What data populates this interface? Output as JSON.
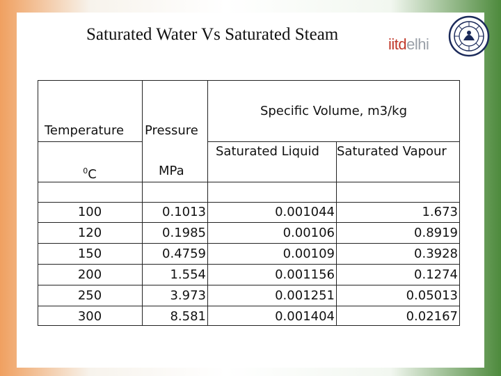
{
  "slide": {
    "title": "Saturated Water Vs Saturated Steam",
    "logo": {
      "part1": "iitd",
      "part2": "elhi"
    }
  },
  "table": {
    "header": {
      "temperature": "Temperature",
      "pressure": "Pressure",
      "specific_volume": "Specific Volume, m3/kg",
      "sat_liquid": "Saturated Liquid",
      "sat_vapour": "Saturated Vapour",
      "temp_unit_sup": "0",
      "temp_unit": "C",
      "pressure_unit": "MPa"
    },
    "rows": [
      {
        "temperature": "100",
        "pressure": "0.1013",
        "liquid": "0.001044",
        "vapour": "1.673"
      },
      {
        "temperature": "120",
        "pressure": "0.1985",
        "liquid": "0.00106",
        "vapour": "0.8919"
      },
      {
        "temperature": "150",
        "pressure": "0.4759",
        "liquid": "0.00109",
        "vapour": "0.3928"
      },
      {
        "temperature": "200",
        "pressure": "1.554",
        "liquid": "0.001156",
        "vapour": "0.1274"
      },
      {
        "temperature": "250",
        "pressure": "3.973",
        "liquid": "0.001251",
        "vapour": "0.05013"
      },
      {
        "temperature": "300",
        "pressure": "8.581",
        "liquid": "0.001404",
        "vapour": "0.02167"
      }
    ]
  }
}
